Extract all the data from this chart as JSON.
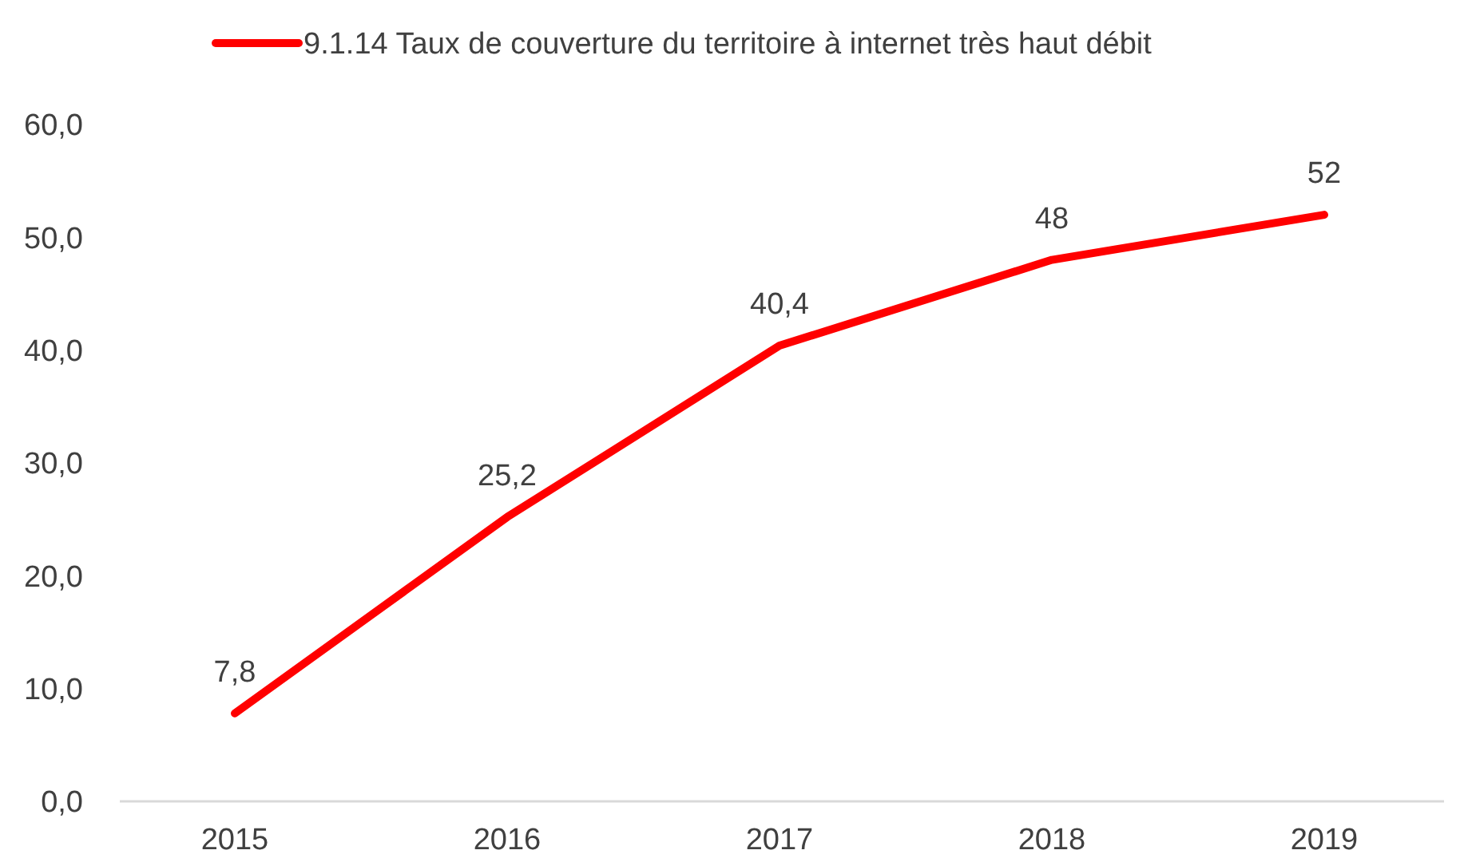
{
  "chart_data": {
    "type": "line",
    "categories": [
      "2015",
      "2016",
      "2017",
      "2018",
      "2019"
    ],
    "series": [
      {
        "name": "9.1.14 Taux de couverture du territoire à internet très haut débit",
        "color": "#ff0000",
        "values": [
          7.8,
          25.2,
          40.4,
          48,
          52
        ],
        "value_labels": [
          "7,8",
          "25,2",
          "40,4",
          "48",
          "52"
        ]
      }
    ],
    "ylim": [
      0,
      60
    ],
    "yticks": [
      {
        "value": 0,
        "label": "0,0"
      },
      {
        "value": 10,
        "label": "10,0"
      },
      {
        "value": 20,
        "label": "20,0"
      },
      {
        "value": 30,
        "label": "30,0"
      },
      {
        "value": 40,
        "label": "40,0"
      },
      {
        "value": 50,
        "label": "50,0"
      },
      {
        "value": 60,
        "label": "60,0"
      }
    ],
    "grid": false,
    "legend": "top",
    "marker": "none",
    "line_style": "solid"
  }
}
